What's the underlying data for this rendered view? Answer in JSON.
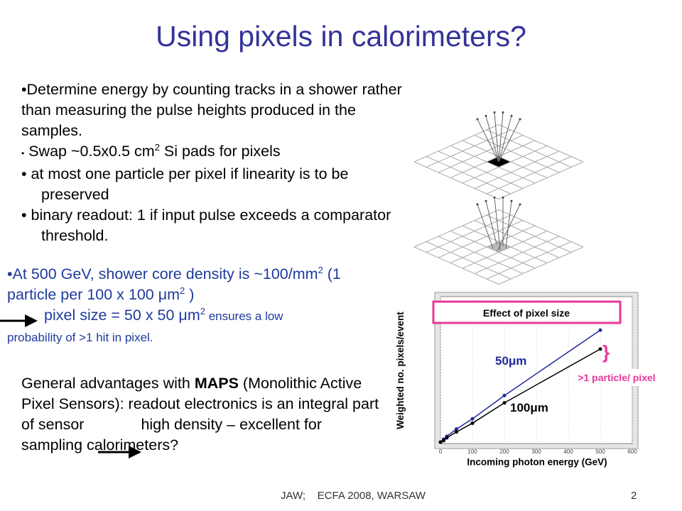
{
  "title": "Using pixels in calorimeters?",
  "intro": {
    "item1": "Determine energy by counting tracks in a shower rather than measuring the pulse heights produced in the samples.",
    "item2": [
      "Swap ~0.5x0.5 cm",
      "2",
      " Si pads for pixels"
    ],
    "item3": "at most one particle per pixel if linearity is to be preserved",
    "item4": "binary readout: 1 if input pulse exceeds a comparator  threshold."
  },
  "density": {
    "line": [
      "At 500 GeV, shower core density is ~100/mm",
      "2",
      " (1 particle per 100 x 100 μm",
      "2",
      " )"
    ],
    "result": [
      "pixel size = 50 x 50 μm",
      "2",
      " ensures a low",
      " probability of >1 hit in pixel."
    ]
  },
  "maps": [
    "General advantages with ",
    "MAPS",
    " (Monolithic Active Pixel Sensors): readout electronics is an integral part of sensor",
    "high density – excellent for sampling calorimeters?"
  ],
  "footer": {
    "left": "JAW;    ECFA 2008, WARSAW",
    "page": "2"
  },
  "chart_data": {
    "type": "line",
    "xlabel": "Incoming photon energy (GeV)",
    "ylabel": "Weighted no. pixels/event",
    "x": [
      0,
      10,
      20,
      50,
      100,
      200,
      500
    ],
    "xlim": [
      0,
      600
    ],
    "xticks": [
      0,
      100,
      200,
      300,
      400,
      500,
      600
    ],
    "ylim": [
      0,
      100
    ],
    "series": [
      {
        "name": "50μm",
        "color": "#1f2a9a",
        "values": [
          1,
          3,
          5,
          10,
          17,
          33,
          78
        ]
      },
      {
        "name": "100μm",
        "color": "#000000",
        "values": [
          1,
          2,
          4,
          8,
          14,
          28,
          65
        ]
      }
    ],
    "annotations": [
      "Effect of pixel size",
      ">1 particle/ pixel"
    ]
  }
}
